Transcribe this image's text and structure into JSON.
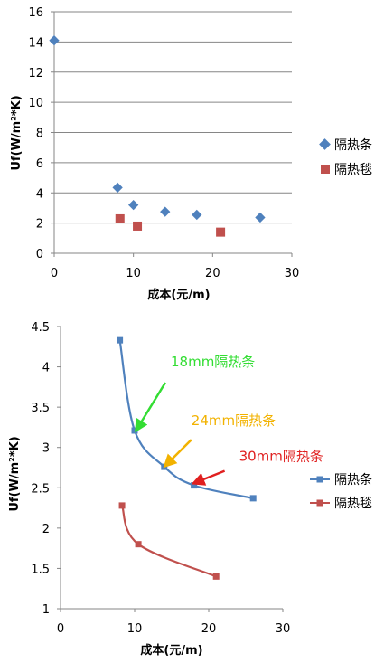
{
  "chart_data": [
    {
      "type": "scatter",
      "title": "",
      "xlabel": "成本(元/m)",
      "ylabel": "Uf(W/m²*K)",
      "xlim": [
        0,
        30
      ],
      "ylim": [
        0,
        16
      ],
      "x_ticks": [
        "0",
        "10",
        "20",
        "30"
      ],
      "y_ticks": [
        "0",
        "2",
        "4",
        "6",
        "8",
        "10",
        "12",
        "14",
        "16"
      ],
      "grid": "horizontal",
      "legend_position": "right",
      "series": [
        {
          "name": "隔热条",
          "color": "#4F81BD",
          "marker": "diamond",
          "points": [
            [
              0,
              14.1
            ],
            [
              8,
              4.35
            ],
            [
              10,
              3.2
            ],
            [
              14,
              2.75
            ],
            [
              18,
              2.55
            ],
            [
              26,
              2.37
            ]
          ]
        },
        {
          "name": "隔热毯",
          "color": "#C0504D",
          "marker": "square",
          "points": [
            [
              8.3,
              2.28
            ],
            [
              10.5,
              1.8
            ],
            [
              21,
              1.4
            ]
          ]
        }
      ]
    },
    {
      "type": "line",
      "title": "",
      "xlabel": "成本(元/m)",
      "ylabel": "Uf(W/m²*K)",
      "xlim": [
        0,
        30
      ],
      "ylim": [
        1,
        4.5
      ],
      "x_ticks": [
        "0",
        "10",
        "20",
        "30"
      ],
      "y_ticks": [
        "1",
        "1.5",
        "2",
        "2.5",
        "3",
        "3.5",
        "4",
        "4.5"
      ],
      "grid": "none",
      "legend_position": "right",
      "series": [
        {
          "name": "隔热条",
          "color": "#4F81BD",
          "marker": "square",
          "points": [
            [
              8,
              4.33
            ],
            [
              10,
              3.21
            ],
            [
              14,
              2.76
            ],
            [
              18,
              2.53
            ],
            [
              26,
              2.37
            ]
          ]
        },
        {
          "name": "隔热毯",
          "color": "#C0504D",
          "marker": "square",
          "points": [
            [
              8.3,
              2.28
            ],
            [
              10.5,
              1.8
            ],
            [
              21,
              1.4
            ]
          ]
        }
      ],
      "annotations": [
        {
          "text": "18mm隔热条",
          "color": "#33DD33",
          "target": [
            10,
            3.21
          ]
        },
        {
          "text": "24mm隔热条",
          "color": "#F2B200",
          "target": [
            14,
            2.76
          ]
        },
        {
          "text": "30mm隔热条",
          "color": "#E02020",
          "target": [
            18,
            2.53
          ]
        }
      ]
    }
  ]
}
